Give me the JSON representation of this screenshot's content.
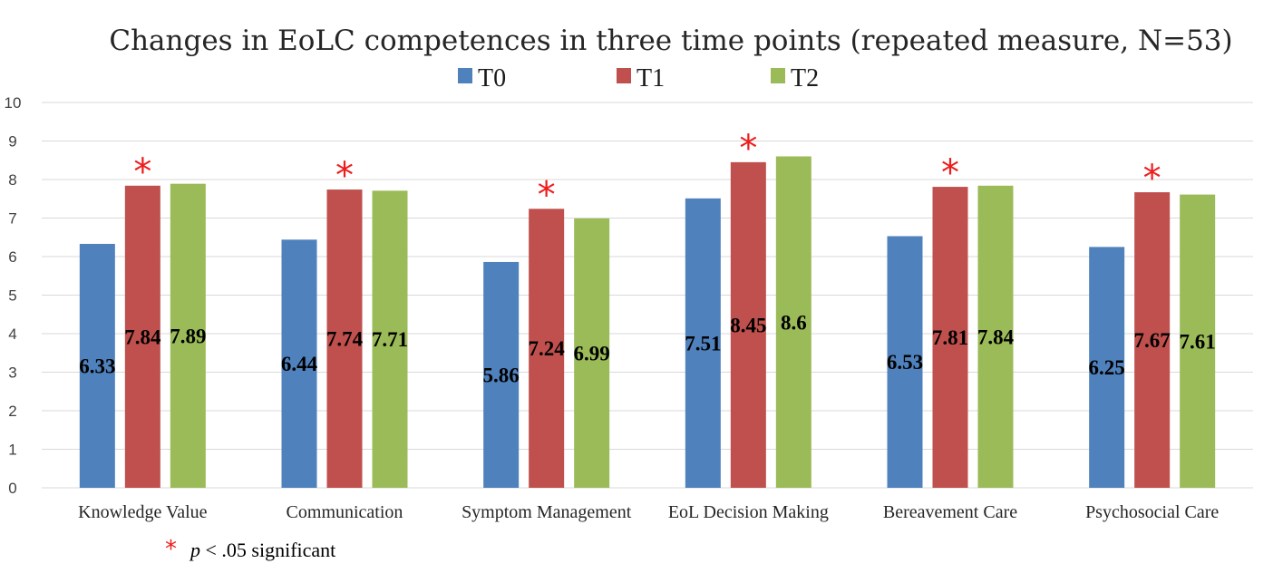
{
  "chart_data": {
    "type": "bar",
    "title": "Changes in EoLC competences in three time points (repeated measure, N=53)",
    "categories": [
      "Knowledge Value",
      "Communication",
      "Symptom Management",
      "EoL Decision Making",
      "Bereavement Care",
      "Psychosocial Care"
    ],
    "series": [
      {
        "name": "T0",
        "color": "#4f81bd",
        "values": [
          6.33,
          6.44,
          5.86,
          7.51,
          6.53,
          6.25
        ]
      },
      {
        "name": "T1",
        "color": "#c0504d",
        "values": [
          7.84,
          7.74,
          7.24,
          8.45,
          7.81,
          7.67
        ]
      },
      {
        "name": "T2",
        "color": "#9bbb59",
        "values": [
          7.89,
          7.71,
          6.99,
          8.6,
          7.84,
          7.61
        ]
      }
    ],
    "data_labels": [
      [
        "6.33",
        "6.44",
        "5.86",
        "7.51",
        "6.53",
        "6.25"
      ],
      [
        "7.84",
        "7.74",
        "7.24",
        "8.45",
        "7.81",
        "7.67"
      ],
      [
        "7.89",
        "7.71",
        "6.99",
        "8.6",
        "7.84",
        "7.61"
      ]
    ],
    "significance_marker": "*",
    "significant": [
      true,
      true,
      true,
      true,
      true,
      true
    ],
    "ylim": [
      0,
      10
    ],
    "yticks": [
      "0",
      "1",
      "2",
      "3",
      "4",
      "5",
      "6",
      "7",
      "8",
      "9",
      "10"
    ],
    "grid": true,
    "legend": "top-center",
    "xlabel": "",
    "ylabel": ""
  },
  "footnote": {
    "marker": "*",
    "p_symbol": "p",
    "text": " < .05 significant"
  }
}
